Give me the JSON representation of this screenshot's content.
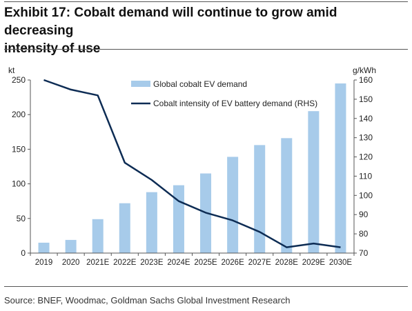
{
  "header": {
    "title_line1": "Exhibit 17: Cobalt demand will continue to grow amid decreasing",
    "title_line2": "intensity of use"
  },
  "footer": {
    "source": "Source: BNEF, Woodmac, Goldman Sachs Global Investment Research"
  },
  "chart_data": {
    "type": "bar",
    "title": "Exhibit 17: Cobalt demand will continue to grow amid decreasing intensity of use",
    "categories": [
      "2019",
      "2020",
      "2021E",
      "2022E",
      "2023E",
      "2024E",
      "2025E",
      "2026E",
      "2027E",
      "2028E",
      "2029E",
      "2030E"
    ],
    "y_left": {
      "unit": "kt",
      "min": 0,
      "max": 250,
      "ticks": [
        0,
        50,
        100,
        150,
        200,
        250
      ]
    },
    "y_right": {
      "unit": "g/kWh",
      "min": 70,
      "max": 160,
      "ticks": [
        70,
        80,
        90,
        100,
        110,
        120,
        130,
        140,
        150,
        160
      ]
    },
    "series": [
      {
        "name": "Global cobalt EV demand",
        "type": "bar",
        "axis": "left",
        "color": "#a7cbea",
        "values": [
          15,
          19,
          49,
          72,
          88,
          98,
          115,
          139,
          156,
          166,
          205,
          245
        ]
      },
      {
        "name": "Cobalt intensity of EV battery demand (RHS)",
        "type": "line",
        "axis": "right",
        "color": "#0d2c54",
        "values": [
          160,
          155,
          152,
          117,
          108,
          97,
          91,
          87,
          81,
          73,
          75,
          73
        ]
      }
    ],
    "legend_position": "top-center",
    "grid": false
  }
}
